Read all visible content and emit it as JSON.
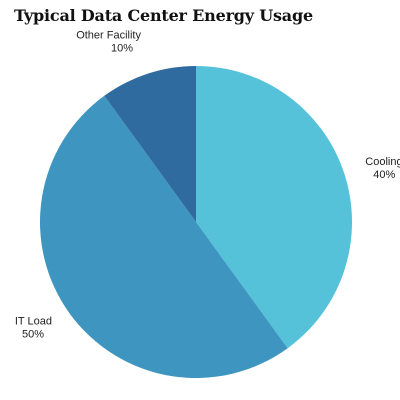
{
  "chart_data": {
    "type": "pie",
    "title": "Typical Data Center Energy Usage",
    "slices": [
      {
        "label": "Cooling",
        "value": 40,
        "value_label": "40%",
        "color": "#55c2da"
      },
      {
        "label": "IT Load",
        "value": 50,
        "value_label": "50%",
        "color": "#3d95c0"
      },
      {
        "label": "Other Facility",
        "value": 10,
        "value_label": "10%",
        "color": "#2f6b9f"
      }
    ],
    "start": "12 o'clock",
    "direction": "clockwise",
    "legend": "none"
  }
}
